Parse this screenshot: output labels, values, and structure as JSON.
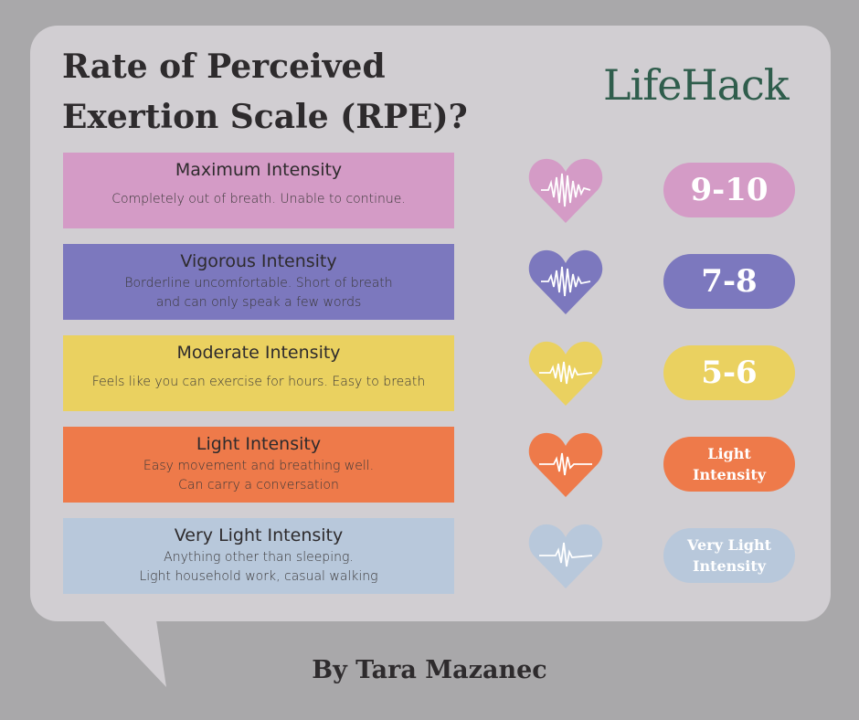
{
  "title": "Rate of Perceived\nExertion Scale (RPE)?",
  "logo": "LifeHack",
  "author": "By Tara Mazanec",
  "levels": [
    {
      "title": "Maximum Intensity",
      "description": "Completely out of breath. Unable to continue.",
      "rating": "9-10",
      "color": "#d49bc6"
    },
    {
      "title": "Vigorous Intensity",
      "description": "Borderline uncomfortable. Short of breath\nand can only speak a few words",
      "rating": "7-8",
      "color": "#7c78be"
    },
    {
      "title": "Moderate Intensity",
      "description": "Feels like you can exercise for hours. Easy to breath",
      "rating": "5-6",
      "color": "#ead160"
    },
    {
      "title": "Light Intensity",
      "description": "Easy movement and breathing well.\nCan carry a conversation",
      "rating": "Light\nIntensity",
      "color": "#ee7a4a"
    },
    {
      "title": "Very Light Intensity",
      "description": "Anything other than sleeping.\nLight household work, casual walking",
      "rating": "Very Light\nIntensity",
      "color": "#b8c8db"
    }
  ]
}
